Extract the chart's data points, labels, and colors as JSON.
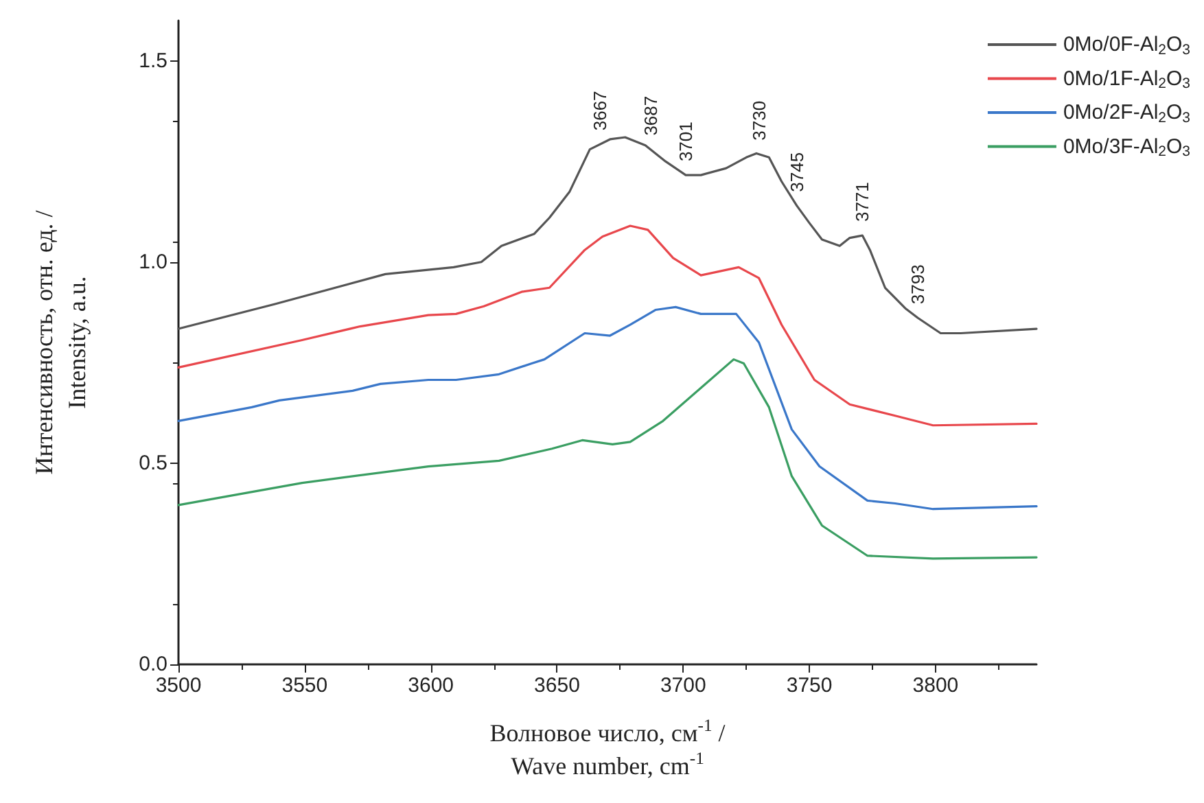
{
  "chart_data": {
    "type": "line",
    "xlabel": "Волновое число, см$^{-1}$ /\nWave number, cm$^{-1}$",
    "ylabel": "Интенсивность, отн. ед. /\nIntensity, a.u.",
    "xlim": [
      3500,
      3840
    ],
    "xticks": [
      3500,
      3550,
      3600,
      3650,
      3700,
      3750,
      3800
    ],
    "ylim": [
      0,
      1.6
    ],
    "yticks": [
      {
        "value": 0,
        "label": "0.0"
      },
      {
        "value": 0.5,
        "label": "0.5"
      },
      {
        "value": 1.0,
        "label": "1.0"
      },
      {
        "value": 1.5,
        "label": "1.5"
      }
    ],
    "grid": false,
    "legend": "top right",
    "marker": "none",
    "line_style": "solid",
    "series": [
      {
        "name": "0Mo/0F-Al$_{2}$O$_{3}$",
        "color": "#555555",
        "x": [
          3500,
          3538,
          3582,
          3609,
          3620,
          3628,
          3641,
          3647,
          3655,
          3663,
          3671,
          3677,
          3685,
          3693,
          3701,
          3707,
          3717,
          3725,
          3729,
          3734,
          3739,
          3745,
          3750,
          3755,
          3762,
          3766,
          3771,
          3774,
          3780,
          3788,
          3793,
          3802,
          3810,
          3840
        ],
        "values": [
          0.834,
          0.895,
          0.97,
          0.987,
          1.0,
          1.04,
          1.07,
          1.11,
          1.175,
          1.28,
          1.305,
          1.31,
          1.29,
          1.25,
          1.216,
          1.216,
          1.233,
          1.26,
          1.27,
          1.26,
          1.2,
          1.14,
          1.097,
          1.056,
          1.04,
          1.06,
          1.066,
          1.03,
          0.936,
          0.885,
          0.861,
          0.823,
          0.823,
          0.834
        ]
      },
      {
        "name": "0Mo/1F-Al$_{2}$O$_{3}$",
        "color": "#e8474c",
        "x": [
          3500,
          3549,
          3572,
          3599,
          3610,
          3621,
          3636,
          3647,
          3661,
          3668,
          3679,
          3686,
          3696,
          3707,
          3722,
          3730,
          3739,
          3752,
          3766,
          3784,
          3799,
          3840
        ],
        "values": [
          0.738,
          0.806,
          0.84,
          0.868,
          0.871,
          0.89,
          0.926,
          0.936,
          1.03,
          1.063,
          1.09,
          1.08,
          1.01,
          0.967,
          0.987,
          0.96,
          0.844,
          0.707,
          0.646,
          0.618,
          0.594,
          0.598
        ]
      },
      {
        "name": "0Mo/2F-Al$_{2}$O$_{3}$",
        "color": "#3a77c9",
        "x": [
          3500,
          3529,
          3540,
          3569,
          3580,
          3599,
          3610,
          3627,
          3640,
          3645,
          3661,
          3671,
          3679,
          3689,
          3697,
          3707,
          3721,
          3730,
          3743,
          3754,
          3773,
          3784,
          3799,
          3840
        ],
        "values": [
          0.605,
          0.639,
          0.656,
          0.68,
          0.697,
          0.707,
          0.707,
          0.721,
          0.748,
          0.758,
          0.823,
          0.817,
          0.844,
          0.881,
          0.888,
          0.871,
          0.871,
          0.8,
          0.584,
          0.492,
          0.407,
          0.4,
          0.386,
          0.393
        ]
      },
      {
        "name": "0Mo/3F-Al$_{2}$O$_{3}$",
        "color": "#3a9e62",
        "x": [
          3500,
          3549,
          3599,
          3627,
          3648,
          3660,
          3672,
          3679,
          3692,
          3707,
          3720,
          3724,
          3734,
          3743,
          3755,
          3773,
          3799,
          3840
        ],
        "values": [
          0.396,
          0.451,
          0.492,
          0.506,
          0.536,
          0.557,
          0.547,
          0.553,
          0.605,
          0.687,
          0.758,
          0.748,
          0.639,
          0.468,
          0.345,
          0.27,
          0.263,
          0.266
        ]
      }
    ],
    "annotations": [
      "3667",
      "3687",
      "3701",
      "3730",
      "3745",
      "3771",
      "3793"
    ]
  }
}
